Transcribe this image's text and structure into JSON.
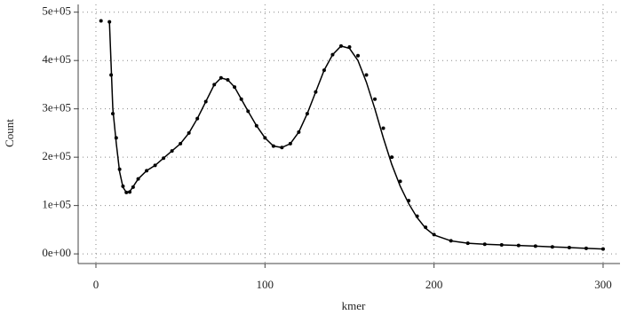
{
  "chart_data": {
    "type": "scatter",
    "x_label": "kmer",
    "y_label": "Count",
    "xlim": [
      -10.5,
      310
    ],
    "xticks": [
      0,
      100,
      200,
      300
    ],
    "ylim": [
      -20000,
      516000
    ],
    "yticks": [
      {
        "value": 0,
        "label": "0e+00"
      },
      {
        "value": 100000,
        "label": "1e+05"
      },
      {
        "value": 200000,
        "label": "2e+05"
      },
      {
        "value": 300000,
        "label": "3e+05"
      },
      {
        "value": 400000,
        "label": "4e+05"
      },
      {
        "value": 500000,
        "label": "5e+05"
      }
    ],
    "grid": true,
    "series": [
      {
        "type": "scatter",
        "color": "#000000",
        "x": [
          3,
          8,
          9,
          10,
          12,
          14,
          16,
          18,
          20,
          22,
          25,
          30,
          35,
          40,
          45,
          50,
          55,
          60,
          65,
          70,
          74,
          78,
          82,
          86,
          90,
          95,
          100,
          105,
          110,
          115,
          120,
          125,
          130,
          135,
          140,
          145,
          150,
          155,
          160,
          165,
          170,
          175,
          180,
          185,
          190,
          195,
          200,
          210,
          220,
          230,
          240,
          250,
          260,
          270,
          280,
          290,
          300
        ],
        "values": [
          482000,
          480000,
          370000,
          290000,
          240000,
          175000,
          140000,
          127000,
          128000,
          138000,
          155000,
          172000,
          183000,
          198000,
          213000,
          228000,
          250000,
          280000,
          315000,
          350000,
          364000,
          360000,
          345000,
          320000,
          295000,
          265000,
          240000,
          223000,
          220000,
          228000,
          252000,
          290000,
          335000,
          380000,
          412000,
          430000,
          428000,
          410000,
          370000,
          320000,
          260000,
          200000,
          150000,
          110000,
          78000,
          55000,
          40000,
          27000,
          22000,
          20000,
          18500,
          17500,
          16000,
          14500,
          13000,
          11500,
          10000
        ]
      },
      {
        "type": "line",
        "color": "#000000",
        "x": [
          8,
          10,
          12,
          14,
          16,
          18,
          20,
          22,
          25,
          30,
          35,
          40,
          45,
          50,
          55,
          60,
          65,
          70,
          74,
          78,
          82,
          86,
          90,
          95,
          100,
          105,
          110,
          115,
          120,
          125,
          130,
          135,
          140,
          145,
          150,
          155,
          160,
          165,
          170,
          175,
          180,
          185,
          190,
          195,
          200,
          210,
          220,
          230,
          240,
          250,
          260,
          270,
          280,
          290,
          300
        ],
        "values": [
          480000,
          300000,
          230000,
          170000,
          138000,
          127000,
          129000,
          139000,
          155000,
          172000,
          183000,
          198000,
          213000,
          228000,
          250000,
          280000,
          315000,
          350000,
          364000,
          360000,
          345000,
          320000,
          295000,
          265000,
          240000,
          223000,
          220000,
          228000,
          252000,
          290000,
          335000,
          380000,
          412000,
          430000,
          425000,
          400000,
          355000,
          300000,
          240000,
          185000,
          140000,
          104000,
          75000,
          53000,
          39000,
          27000,
          22000,
          20000,
          18500,
          17500,
          16000,
          14500,
          13000,
          11500,
          10000
        ]
      }
    ]
  }
}
